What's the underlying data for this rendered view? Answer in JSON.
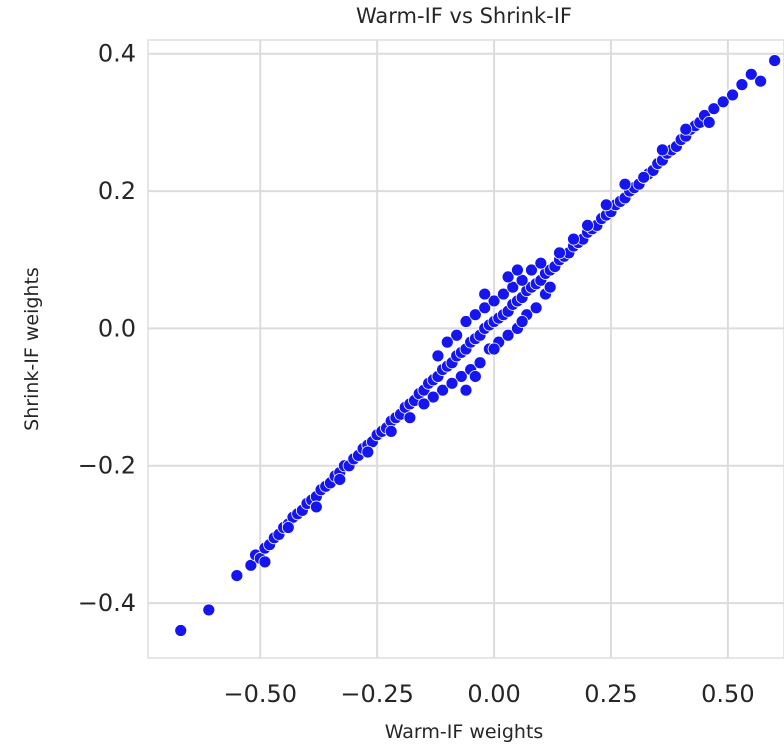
{
  "chart_data": {
    "type": "scatter",
    "title": "Warm-IF vs Shrink-IF",
    "xlabel": "Warm-IF weights",
    "ylabel": "Shrink-IF weights",
    "xlim": [
      -0.74,
      0.62
    ],
    "ylim": [
      -0.48,
      0.42
    ],
    "xticks": [
      -0.5,
      -0.25,
      0.0,
      0.25,
      0.5
    ],
    "xtick_labels": [
      "−0.50",
      "−0.25",
      "0.00",
      "0.25",
      "0.50"
    ],
    "yticks": [
      -0.4,
      -0.2,
      0.0,
      0.2,
      0.4
    ],
    "ytick_labels": [
      "−0.4",
      "−0.2",
      "0.0",
      "0.2",
      "0.4"
    ],
    "grid": true,
    "marker_color": "#1515f0",
    "marker_edge_color": "#ffffff",
    "points": [
      [
        -0.67,
        -0.44
      ],
      [
        -0.61,
        -0.41
      ],
      [
        -0.55,
        -0.36
      ],
      [
        -0.52,
        -0.345
      ],
      [
        -0.51,
        -0.33
      ],
      [
        -0.5,
        -0.335
      ],
      [
        -0.49,
        -0.32
      ],
      [
        -0.48,
        -0.315
      ],
      [
        -0.47,
        -0.305
      ],
      [
        -0.46,
        -0.3
      ],
      [
        -0.45,
        -0.29
      ],
      [
        -0.44,
        -0.285
      ],
      [
        -0.43,
        -0.275
      ],
      [
        -0.42,
        -0.27
      ],
      [
        -0.41,
        -0.265
      ],
      [
        -0.4,
        -0.255
      ],
      [
        -0.39,
        -0.25
      ],
      [
        -0.38,
        -0.245
      ],
      [
        -0.37,
        -0.235
      ],
      [
        -0.36,
        -0.23
      ],
      [
        -0.35,
        -0.225
      ],
      [
        -0.34,
        -0.215
      ],
      [
        -0.33,
        -0.21
      ],
      [
        -0.32,
        -0.2
      ],
      [
        -0.31,
        -0.2
      ],
      [
        -0.3,
        -0.19
      ],
      [
        -0.29,
        -0.185
      ],
      [
        -0.28,
        -0.175
      ],
      [
        -0.27,
        -0.17
      ],
      [
        -0.26,
        -0.165
      ],
      [
        -0.25,
        -0.155
      ],
      [
        -0.24,
        -0.15
      ],
      [
        -0.23,
        -0.145
      ],
      [
        -0.22,
        -0.135
      ],
      [
        -0.21,
        -0.13
      ],
      [
        -0.2,
        -0.125
      ],
      [
        -0.19,
        -0.115
      ],
      [
        -0.18,
        -0.11
      ],
      [
        -0.17,
        -0.105
      ],
      [
        -0.16,
        -0.095
      ],
      [
        -0.15,
        -0.09
      ],
      [
        -0.14,
        -0.08
      ],
      [
        -0.13,
        -0.075
      ],
      [
        -0.12,
        -0.07
      ],
      [
        -0.11,
        -0.06
      ],
      [
        -0.1,
        -0.055
      ],
      [
        -0.09,
        -0.05
      ],
      [
        -0.08,
        -0.04
      ],
      [
        -0.07,
        -0.035
      ],
      [
        -0.06,
        -0.03
      ],
      [
        -0.05,
        -0.02
      ],
      [
        -0.04,
        -0.015
      ],
      [
        -0.03,
        -0.01
      ],
      [
        -0.02,
        0.0
      ],
      [
        -0.01,
        0.005
      ],
      [
        0.0,
        0.01
      ],
      [
        0.01,
        0.015
      ],
      [
        0.02,
        0.02
      ],
      [
        0.03,
        0.025
      ],
      [
        0.04,
        0.035
      ],
      [
        0.05,
        0.04
      ],
      [
        0.06,
        0.045
      ],
      [
        0.07,
        0.055
      ],
      [
        0.08,
        0.06
      ],
      [
        0.09,
        0.065
      ],
      [
        0.1,
        0.07
      ],
      [
        0.11,
        0.08
      ],
      [
        0.12,
        0.085
      ],
      [
        0.13,
        0.09
      ],
      [
        0.14,
        0.1
      ],
      [
        0.15,
        0.105
      ],
      [
        0.16,
        0.11
      ],
      [
        0.17,
        0.12
      ],
      [
        0.18,
        0.125
      ],
      [
        0.19,
        0.13
      ],
      [
        0.2,
        0.14
      ],
      [
        0.21,
        0.145
      ],
      [
        0.22,
        0.15
      ],
      [
        0.23,
        0.16
      ],
      [
        0.24,
        0.165
      ],
      [
        0.25,
        0.17
      ],
      [
        0.26,
        0.18
      ],
      [
        0.27,
        0.185
      ],
      [
        0.28,
        0.19
      ],
      [
        0.29,
        0.2
      ],
      [
        0.3,
        0.205
      ],
      [
        0.31,
        0.21
      ],
      [
        0.32,
        0.22
      ],
      [
        0.33,
        0.225
      ],
      [
        0.34,
        0.23
      ],
      [
        0.35,
        0.24
      ],
      [
        0.36,
        0.245
      ],
      [
        0.37,
        0.255
      ],
      [
        0.38,
        0.26
      ],
      [
        0.39,
        0.265
      ],
      [
        0.4,
        0.275
      ],
      [
        0.41,
        0.28
      ],
      [
        0.42,
        0.29
      ],
      [
        0.43,
        0.295
      ],
      [
        0.44,
        0.3
      ],
      [
        0.45,
        0.31
      ],
      [
        0.47,
        0.32
      ],
      [
        0.49,
        0.33
      ],
      [
        0.51,
        0.34
      ],
      [
        0.53,
        0.355
      ],
      [
        0.55,
        0.37
      ],
      [
        0.57,
        0.36
      ],
      [
        0.6,
        0.39
      ],
      [
        -0.08,
        -0.01
      ],
      [
        -0.07,
        -0.07
      ],
      [
        -0.06,
        0.01
      ],
      [
        -0.05,
        -0.06
      ],
      [
        -0.04,
        0.02
      ],
      [
        -0.03,
        -0.05
      ],
      [
        -0.02,
        0.03
      ],
      [
        -0.01,
        -0.03
      ],
      [
        0.0,
        0.04
      ],
      [
        0.01,
        -0.02
      ],
      [
        0.02,
        0.05
      ],
      [
        0.03,
        -0.01
      ],
      [
        0.04,
        0.06
      ],
      [
        0.05,
        0.0
      ],
      [
        0.06,
        0.07
      ],
      [
        0.07,
        0.02
      ],
      [
        0.08,
        0.085
      ],
      [
        -0.1,
        -0.02
      ],
      [
        -0.11,
        -0.09
      ],
      [
        -0.12,
        -0.04
      ],
      [
        0.09,
        0.03
      ],
      [
        0.1,
        0.095
      ],
      [
        0.11,
        0.05
      ],
      [
        -0.09,
        -0.08
      ],
      [
        -0.04,
        -0.07
      ],
      [
        0.03,
        0.075
      ],
      [
        0.0,
        -0.03
      ],
      [
        -0.02,
        0.05
      ],
      [
        0.06,
        0.01
      ],
      [
        -0.06,
        -0.09
      ],
      [
        0.05,
        0.085
      ],
      [
        -0.13,
        -0.1
      ],
      [
        0.12,
        0.06
      ],
      [
        -0.15,
        -0.11
      ],
      [
        0.14,
        0.11
      ],
      [
        -0.18,
        -0.13
      ],
      [
        0.17,
        0.13
      ],
      [
        -0.22,
        -0.15
      ],
      [
        0.2,
        0.15
      ],
      [
        0.24,
        0.18
      ],
      [
        -0.27,
        -0.18
      ],
      [
        0.28,
        0.21
      ],
      [
        -0.33,
        -0.22
      ],
      [
        0.32,
        0.22
      ],
      [
        -0.38,
        -0.26
      ],
      [
        0.36,
        0.26
      ],
      [
        -0.44,
        -0.29
      ],
      [
        0.41,
        0.29
      ],
      [
        0.46,
        0.3
      ],
      [
        -0.49,
        -0.34
      ]
    ]
  }
}
